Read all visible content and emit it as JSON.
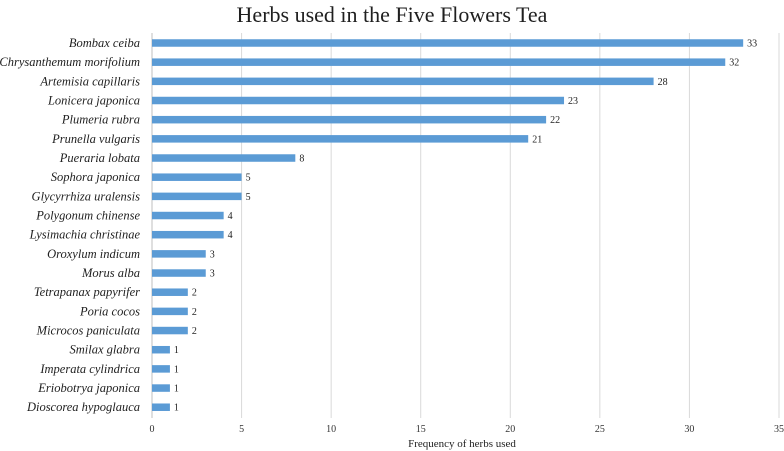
{
  "chart_data": {
    "type": "bar",
    "orientation": "horizontal",
    "title": "Herbs used in the Five Flowers Tea",
    "xlabel": "Frequency of herbs used",
    "ylabel": "",
    "xlim": [
      0,
      35
    ],
    "x_ticks": [
      0,
      5,
      10,
      15,
      20,
      25,
      30,
      35
    ],
    "grid": "vertical",
    "legend": "none",
    "bar_color": "#5b9bd5",
    "categories": [
      "Bombax ceiba",
      "Chrysanthemum morifolium",
      "Artemisia capillaris",
      "Lonicera japonica",
      "Plumeria rubra",
      "Prunella vulgaris",
      "Pueraria lobata",
      "Sophora japonica",
      "Glycyrrhiza uralensis",
      "Polygonum chinense",
      "Lysimachia christinae",
      "Oroxylum indicum",
      "Morus alba",
      "Tetrapanax papyrifer",
      "Poria cocos",
      "Microcos paniculata",
      "Smilax glabra",
      "Imperata cylindrica",
      "Eriobotrya japonica",
      "Dioscorea hypoglauca"
    ],
    "values": [
      33,
      32,
      28,
      23,
      22,
      21,
      8,
      5,
      5,
      4,
      4,
      3,
      3,
      2,
      2,
      2,
      1,
      1,
      1,
      1
    ]
  }
}
